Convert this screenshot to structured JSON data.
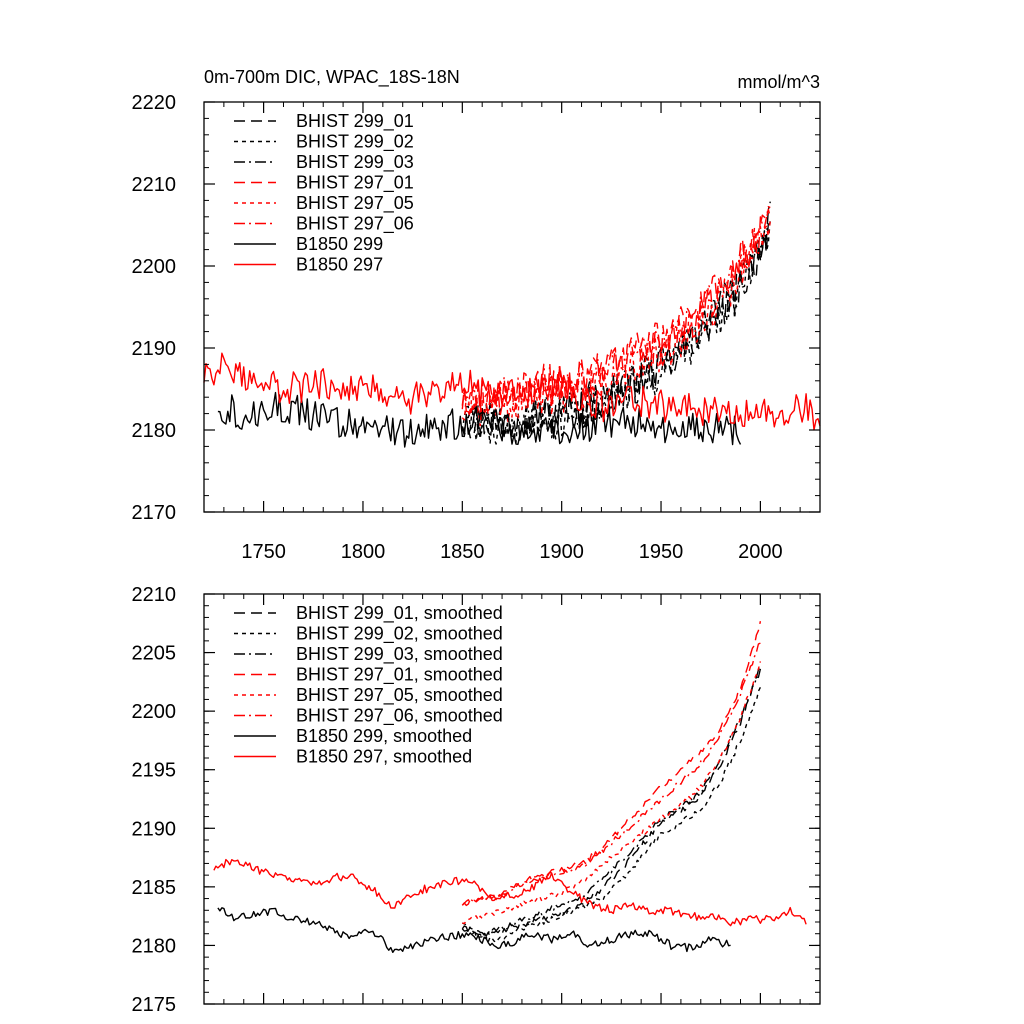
{
  "chart_data": [
    {
      "type": "line",
      "title_left": "0m-700m DIC, WPAC_18S-18N",
      "title_right": "mmol/m^3",
      "xlim": [
        1720,
        2030
      ],
      "ylim": [
        2170,
        2220
      ],
      "xticks": [
        1750,
        1800,
        1850,
        1900,
        1950,
        2000
      ],
      "xtick_labels": [
        "1750",
        "1800",
        "1850",
        "1900",
        "1950",
        "2000"
      ],
      "yticks": [
        2170,
        2180,
        2190,
        2200,
        2210,
        2220
      ],
      "ytick_labels": [
        "2170",
        "2180",
        "2190",
        "2200",
        "2210",
        "2220"
      ],
      "legend_position": "top-left",
      "series": [
        {
          "name": "BHIST 299_01",
          "color": "#000000",
          "dash": "long-dash",
          "noise": 2.5,
          "x": [
            1850,
            1870,
            1890,
            1910,
            1930,
            1950,
            1960,
            1970,
            1980,
            1990,
            2000,
            2005
          ],
          "y": [
            2181.5,
            2181,
            2181.5,
            2182.5,
            2184.5,
            2187.5,
            2189.5,
            2192,
            2194.5,
            2197.5,
            2202,
            2205.5
          ]
        },
        {
          "name": "BHIST 299_02",
          "color": "#000000",
          "dash": "short-dash",
          "noise": 2.5,
          "x": [
            1850,
            1870,
            1890,
            1910,
            1930,
            1950,
            1960,
            1970,
            1980,
            1990,
            2000,
            2005
          ],
          "y": [
            2181,
            2180.5,
            2181,
            2182,
            2184,
            2187,
            2189,
            2191,
            2193.5,
            2196.5,
            2201.5,
            2205
          ]
        },
        {
          "name": "BHIST 299_03",
          "color": "#000000",
          "dash": "dash-dot",
          "noise": 2.5,
          "x": [
            1850,
            1870,
            1890,
            1910,
            1930,
            1950,
            1960,
            1970,
            1980,
            1990,
            2000,
            2005
          ],
          "y": [
            2181.5,
            2181,
            2182,
            2183,
            2185,
            2188,
            2190,
            2192.5,
            2195,
            2198,
            2202.5,
            2206
          ]
        },
        {
          "name": "BHIST 297_01",
          "color": "#ff0000",
          "dash": "long-dash",
          "noise": 2.5,
          "x": [
            1850,
            1870,
            1890,
            1910,
            1930,
            1950,
            1960,
            1970,
            1980,
            1990,
            2000,
            2005
          ],
          "y": [
            2184,
            2184,
            2185,
            2186.5,
            2188.5,
            2191,
            2193,
            2195,
            2197.5,
            2200.5,
            2204.5,
            2208
          ]
        },
        {
          "name": "BHIST 297_05",
          "color": "#ff0000",
          "dash": "short-dash",
          "noise": 2.5,
          "x": [
            1850,
            1870,
            1890,
            1910,
            1930,
            1950,
            1960,
            1970,
            1980,
            1990,
            2000,
            2005
          ],
          "y": [
            2182.5,
            2183,
            2184,
            2185,
            2187,
            2189.5,
            2191,
            2193.5,
            2196,
            2199,
            2203.5,
            2206.5
          ]
        },
        {
          "name": "BHIST 297_06",
          "color": "#ff0000",
          "dash": "dash-dot",
          "noise": 2.5,
          "x": [
            1850,
            1870,
            1890,
            1910,
            1930,
            1950,
            1960,
            1970,
            1980,
            1990,
            2000,
            2005
          ],
          "y": [
            2183.5,
            2184,
            2185.5,
            2186,
            2188,
            2190.5,
            2192.5,
            2194.5,
            2197,
            2200,
            2204,
            2207
          ]
        },
        {
          "name": "B1850 299",
          "color": "#000000",
          "dash": "solid",
          "noise": 2.0,
          "x": [
            1727,
            1740,
            1760,
            1780,
            1800,
            1820,
            1840,
            1860,
            1880,
            1900,
            1920,
            1940,
            1960,
            1980,
            1990
          ],
          "y": [
            2183,
            2182,
            2182.8,
            2181.2,
            2180.8,
            2179.5,
            2180.5,
            2181,
            2180,
            2180.2,
            2180.5,
            2181,
            2180,
            2180.5,
            2180
          ]
        },
        {
          "name": "B1850 297",
          "color": "#ff0000",
          "dash": "solid",
          "noise": 2.0,
          "x": [
            1720,
            1730,
            1740,
            1760,
            1780,
            1800,
            1820,
            1840,
            1850,
            1860,
            1880,
            1900,
            1920,
            1940,
            1960,
            1980,
            2000,
            2020,
            2030
          ],
          "y": [
            2186.5,
            2187.5,
            2186.5,
            2185,
            2185.8,
            2185.5,
            2183.5,
            2185.5,
            2186,
            2184.5,
            2184.2,
            2185.5,
            2183,
            2183.5,
            2182.5,
            2182.5,
            2182,
            2183,
            2181.5
          ]
        }
      ]
    },
    {
      "type": "line",
      "xlim": [
        1720,
        2030
      ],
      "ylim": [
        2175,
        2210
      ],
      "xticks": [
        1750,
        1800,
        1850,
        1900,
        1950,
        2000
      ],
      "yticks": [
        2175,
        2180,
        2185,
        2190,
        2195,
        2200,
        2205,
        2210
      ],
      "ytick_labels": [
        "2175",
        "2180",
        "2185",
        "2190",
        "2195",
        "2200",
        "2205",
        "2210"
      ],
      "legend_position": "top-left",
      "series": [
        {
          "name": "BHIST 299_01, smoothed",
          "color": "#000000",
          "dash": "long-dash",
          "noise": 0.25,
          "x": [
            1850,
            1860,
            1870,
            1880,
            1890,
            1900,
            1910,
            1920,
            1930,
            1940,
            1950,
            1960,
            1970,
            1980,
            1990,
            2000
          ],
          "y": [
            2181.5,
            2180.8,
            2181.2,
            2181.8,
            2182.2,
            2182.8,
            2183.5,
            2184.8,
            2186.5,
            2188.5,
            2190.5,
            2191.5,
            2192.8,
            2195.5,
            2199,
            2204
          ]
        },
        {
          "name": "BHIST 299_02, smoothed",
          "color": "#000000",
          "dash": "short-dash",
          "noise": 0.25,
          "x": [
            1850,
            1860,
            1870,
            1880,
            1890,
            1900,
            1910,
            1920,
            1930,
            1940,
            1950,
            1960,
            1970,
            1980,
            1990,
            2000
          ],
          "y": [
            2182,
            2180.5,
            2180.5,
            2181.5,
            2182,
            2182.5,
            2183.2,
            2184,
            2185.5,
            2187.5,
            2189.5,
            2190.5,
            2191.5,
            2194,
            2197.5,
            2202
          ]
        },
        {
          "name": "BHIST 299_03, smoothed",
          "color": "#000000",
          "dash": "dash-dot",
          "noise": 0.25,
          "x": [
            1850,
            1860,
            1870,
            1880,
            1890,
            1900,
            1910,
            1920,
            1930,
            1940,
            1950,
            1960,
            1970,
            1980,
            1990,
            2000
          ],
          "y": [
            2181.5,
            2181,
            2181.5,
            2182.2,
            2182.8,
            2183.5,
            2184.2,
            2185.5,
            2187.2,
            2189,
            2190.8,
            2191.8,
            2193,
            2196,
            2199.5,
            2203.5
          ]
        },
        {
          "name": "BHIST 297_01, smoothed",
          "color": "#ff0000",
          "dash": "long-dash",
          "noise": 0.25,
          "x": [
            1850,
            1860,
            1870,
            1880,
            1890,
            1900,
            1910,
            1920,
            1930,
            1940,
            1950,
            1960,
            1970,
            1980,
            1990,
            2000
          ],
          "y": [
            2183.5,
            2184,
            2184.5,
            2185.5,
            2186,
            2186.5,
            2187,
            2188.2,
            2190,
            2191.8,
            2193.5,
            2195,
            2196.5,
            2198.5,
            2202,
            2207.5
          ]
        },
        {
          "name": "BHIST 297_05, smoothed",
          "color": "#ff0000",
          "dash": "short-dash",
          "noise": 0.25,
          "x": [
            1850,
            1860,
            1870,
            1880,
            1890,
            1900,
            1910,
            1920,
            1930,
            1940,
            1950,
            1960,
            1970,
            1980,
            1990,
            2000
          ],
          "y": [
            2182,
            2182.5,
            2183,
            2183.5,
            2184,
            2184.5,
            2185.5,
            2186.8,
            2188.2,
            2189.5,
            2190.8,
            2192,
            2193.5,
            2196,
            2199.5,
            2204
          ]
        },
        {
          "name": "BHIST 297_06, smoothed",
          "color": "#ff0000",
          "dash": "dash-dot",
          "noise": 0.25,
          "x": [
            1850,
            1860,
            1870,
            1880,
            1890,
            1900,
            1910,
            1920,
            1930,
            1940,
            1950,
            1960,
            1970,
            1980,
            1990,
            2000
          ],
          "y": [
            2183.5,
            2184,
            2184.2,
            2185.2,
            2185.8,
            2186.2,
            2186.8,
            2188,
            2189.5,
            2191,
            2192.5,
            2194,
            2195.5,
            2198,
            2201.5,
            2206
          ]
        },
        {
          "name": "B1850 299, smoothed",
          "color": "#000000",
          "dash": "solid",
          "noise": 0.35,
          "x": [
            1727,
            1735,
            1745,
            1755,
            1765,
            1775,
            1785,
            1795,
            1805,
            1815,
            1825,
            1835,
            1845,
            1855,
            1865,
            1875,
            1885,
            1895,
            1905,
            1915,
            1925,
            1935,
            1945,
            1955,
            1965,
            1975,
            1985
          ],
          "y": [
            2183.3,
            2182.2,
            2182.6,
            2183,
            2182.2,
            2182,
            2181.2,
            2180.8,
            2181.2,
            2179.5,
            2180,
            2180.5,
            2180.8,
            2181,
            2180,
            2180.2,
            2181,
            2180.5,
            2181,
            2180,
            2180.5,
            2181,
            2181,
            2180,
            2179.8,
            2180.5,
            2180
          ]
        },
        {
          "name": "B1850 297, smoothed",
          "color": "#ff0000",
          "dash": "solid",
          "noise": 0.35,
          "x": [
            1725,
            1735,
            1745,
            1755,
            1765,
            1775,
            1785,
            1795,
            1805,
            1815,
            1825,
            1835,
            1845,
            1855,
            1865,
            1875,
            1885,
            1895,
            1905,
            1915,
            1925,
            1935,
            1945,
            1955,
            1965,
            1975,
            1985,
            1995,
            2005,
            2015,
            2023
          ],
          "y": [
            2186.5,
            2187.4,
            2186.5,
            2186,
            2185.5,
            2185.2,
            2185.8,
            2185.8,
            2184.8,
            2183.3,
            2184.5,
            2185,
            2185.5,
            2185.5,
            2184,
            2184.2,
            2185,
            2186,
            2184.5,
            2183.5,
            2183,
            2183.5,
            2182.8,
            2183,
            2182.5,
            2182.5,
            2182,
            2182.2,
            2182.2,
            2183,
            2182
          ]
        }
      ]
    }
  ]
}
